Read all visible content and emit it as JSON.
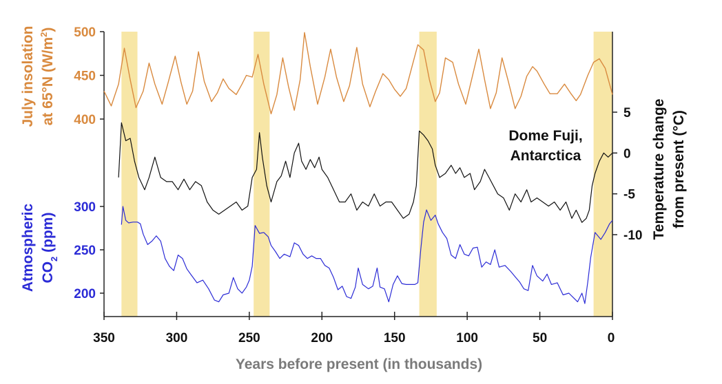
{
  "chart_data": {
    "type": "line",
    "x": {
      "label": "Years before present (in thousands)",
      "range": [
        350,
        0
      ],
      "ticks": [
        "350",
        "300",
        "250",
        "200",
        "150",
        "100",
        "50",
        "0"
      ]
    },
    "interglacial_bands_kyr": [
      [
        338,
        327
      ],
      [
        247,
        236
      ],
      [
        133,
        121
      ],
      [
        13,
        0
      ]
    ],
    "series": [
      {
        "name": "July insolation at 65°N",
        "color": "#d98a3f",
        "axis": "left-top",
        "ylim": [
          400,
          500
        ],
        "axis_ticks": [
          "400",
          "450",
          "500"
        ],
        "points": [
          [
            350,
            432
          ],
          [
            345,
            415
          ],
          [
            340,
            440
          ],
          [
            336,
            481
          ],
          [
            332,
            445
          ],
          [
            328,
            413
          ],
          [
            323,
            432
          ],
          [
            319,
            464
          ],
          [
            315,
            440
          ],
          [
            310,
            417
          ],
          [
            306,
            441
          ],
          [
            301,
            472
          ],
          [
            297,
            442
          ],
          [
            293,
            417
          ],
          [
            289,
            432
          ],
          [
            285,
            477
          ],
          [
            281,
            443
          ],
          [
            276,
            420
          ],
          [
            272,
            430
          ],
          [
            268,
            446
          ],
          [
            264,
            435
          ],
          [
            259,
            428
          ],
          [
            255,
            440
          ],
          [
            252,
            450
          ],
          [
            248,
            448
          ],
          [
            244,
            474
          ],
          [
            240,
            440
          ],
          [
            235,
            406
          ],
          [
            231,
            428
          ],
          [
            227,
            470
          ],
          [
            223,
            437
          ],
          [
            219,
            410
          ],
          [
            215,
            445
          ],
          [
            212,
            499
          ],
          [
            208,
            460
          ],
          [
            203,
            417
          ],
          [
            198,
            448
          ],
          [
            194,
            480
          ],
          [
            190,
            448
          ],
          [
            185,
            420
          ],
          [
            181,
            438
          ],
          [
            176,
            482
          ],
          [
            172,
            440
          ],
          [
            167,
            414
          ],
          [
            163,
            432
          ],
          [
            158,
            452
          ],
          [
            154,
            445
          ],
          [
            150,
            434
          ],
          [
            146,
            426
          ],
          [
            142,
            435
          ],
          [
            138,
            460
          ],
          [
            134,
            485
          ],
          [
            130,
            479
          ],
          [
            126,
            445
          ],
          [
            122,
            420
          ],
          [
            119,
            430
          ],
          [
            115,
            470
          ],
          [
            110,
            465
          ],
          [
            106,
            440
          ],
          [
            101,
            417
          ],
          [
            97,
            445
          ],
          [
            92,
            480
          ],
          [
            88,
            445
          ],
          [
            84,
            412
          ],
          [
            80,
            430
          ],
          [
            76,
            470
          ],
          [
            72,
            445
          ],
          [
            67,
            412
          ],
          [
            63,
            426
          ],
          [
            59,
            449
          ],
          [
            55,
            460
          ],
          [
            52,
            455
          ],
          [
            47,
            440
          ],
          [
            43,
            429
          ],
          [
            38,
            429
          ],
          [
            33,
            440
          ],
          [
            29,
            430
          ],
          [
            25,
            421
          ],
          [
            22,
            428
          ],
          [
            17,
            450
          ],
          [
            13,
            465
          ],
          [
            9,
            469
          ],
          [
            5,
            458
          ],
          [
            2,
            440
          ],
          [
            0,
            428
          ]
        ]
      },
      {
        "name": "Dome Fuji temperature change from present",
        "color": "#111111",
        "axis": "right",
        "ylim": [
          -10,
          5
        ],
        "axis_ticks": [
          "5",
          "0",
          "-5",
          "-10"
        ],
        "title": "Temperature change from present (°C)",
        "points": [
          [
            340,
            -3
          ],
          [
            338,
            3.7
          ],
          [
            335,
            1.5
          ],
          [
            332,
            1.8
          ],
          [
            329,
            -1
          ],
          [
            326,
            -3
          ],
          [
            322,
            -4.5
          ],
          [
            319,
            -3
          ],
          [
            315,
            -0.5
          ],
          [
            311,
            -3
          ],
          [
            307,
            -3.5
          ],
          [
            303,
            -3.5
          ],
          [
            299,
            -4.5
          ],
          [
            295,
            -3.2
          ],
          [
            291,
            -4.5
          ],
          [
            287,
            -3.5
          ],
          [
            283,
            -4
          ],
          [
            279,
            -6
          ],
          [
            275,
            -7
          ],
          [
            271,
            -7.5
          ],
          [
            267,
            -7
          ],
          [
            263,
            -6.5
          ],
          [
            259,
            -6
          ],
          [
            255,
            -7
          ],
          [
            251,
            -6.5
          ],
          [
            248,
            -3
          ],
          [
            245,
            -2
          ],
          [
            243,
            2.5
          ],
          [
            241,
            -0.5
          ],
          [
            238,
            -4
          ],
          [
            235,
            -6
          ],
          [
            231,
            -3.5
          ],
          [
            228,
            -2.8
          ],
          [
            225,
            -1
          ],
          [
            222,
            -3
          ],
          [
            219,
            0
          ],
          [
            216,
            1.2
          ],
          [
            214,
            -1
          ],
          [
            211,
            -2
          ],
          [
            208,
            -0.8
          ],
          [
            205,
            -1.8
          ],
          [
            202,
            -0.5
          ],
          [
            200,
            -2
          ],
          [
            196,
            -3
          ],
          [
            192,
            -4.5
          ],
          [
            188,
            -6
          ],
          [
            184,
            -6
          ],
          [
            180,
            -5
          ],
          [
            176,
            -7
          ],
          [
            172,
            -6
          ],
          [
            168,
            -6.5
          ],
          [
            164,
            -5
          ],
          [
            160,
            -6.5
          ],
          [
            156,
            -6
          ],
          [
            152,
            -6
          ],
          [
            148,
            -7
          ],
          [
            144,
            -8
          ],
          [
            140,
            -7.5
          ],
          [
            137,
            -6
          ],
          [
            135,
            -4
          ],
          [
            133,
            2.7
          ],
          [
            130,
            2.2
          ],
          [
            127,
            1.5
          ],
          [
            124,
            0.5
          ],
          [
            122,
            -1.5
          ],
          [
            119,
            -3
          ],
          [
            115,
            -2.5
          ],
          [
            111,
            -1.5
          ],
          [
            108,
            -2.5
          ],
          [
            105,
            -1.8
          ],
          [
            102,
            -3
          ],
          [
            98,
            -2.5
          ],
          [
            95,
            -4.5
          ],
          [
            91,
            -3.5
          ],
          [
            88,
            -2
          ],
          [
            85,
            -3
          ],
          [
            82,
            -4
          ],
          [
            79,
            -5
          ],
          [
            75,
            -5.5
          ],
          [
            71,
            -7
          ],
          [
            67,
            -5
          ],
          [
            63,
            -6
          ],
          [
            59,
            -4.5
          ],
          [
            56,
            -6
          ],
          [
            52,
            -5.5
          ],
          [
            48,
            -6
          ],
          [
            44,
            -6.5
          ],
          [
            40,
            -6
          ],
          [
            36,
            -7
          ],
          [
            32,
            -6
          ],
          [
            28,
            -8
          ],
          [
            25,
            -7
          ],
          [
            21,
            -8.5
          ],
          [
            18,
            -8
          ],
          [
            16,
            -7
          ],
          [
            14,
            -4
          ],
          [
            12,
            -2.5
          ],
          [
            9,
            -1
          ],
          [
            6,
            0
          ],
          [
            3,
            -0.5
          ],
          [
            0,
            0
          ]
        ]
      },
      {
        "name": "Atmospheric CO2",
        "color": "#2b2bd6",
        "axis": "left-bottom",
        "ylim": [
          200,
          300
        ],
        "axis_ticks": [
          "200",
          "250",
          "300"
        ],
        "points": [
          [
            338,
            279
          ],
          [
            337,
            300
          ],
          [
            335,
            284
          ],
          [
            333,
            281
          ],
          [
            330,
            282
          ],
          [
            327,
            282
          ],
          [
            325,
            280
          ],
          [
            323,
            268
          ],
          [
            320,
            256
          ],
          [
            317,
            260
          ],
          [
            314,
            266
          ],
          [
            311,
            260
          ],
          [
            308,
            240
          ],
          [
            305,
            231
          ],
          [
            302,
            226
          ],
          [
            299,
            244
          ],
          [
            296,
            240
          ],
          [
            293,
            228
          ],
          [
            290,
            221
          ],
          [
            286,
            212
          ],
          [
            282,
            215
          ],
          [
            278,
            205
          ],
          [
            274,
            192
          ],
          [
            271,
            190
          ],
          [
            268,
            198
          ],
          [
            264,
            200
          ],
          [
            261,
            218
          ],
          [
            258,
            205
          ],
          [
            255,
            200
          ],
          [
            252,
            207
          ],
          [
            250,
            215
          ],
          [
            248,
            231
          ],
          [
            246,
            278
          ],
          [
            243,
            269
          ],
          [
            240,
            270
          ],
          [
            237,
            265
          ],
          [
            235,
            255
          ],
          [
            232,
            248
          ],
          [
            229,
            240
          ],
          [
            226,
            245
          ],
          [
            222,
            242
          ],
          [
            219,
            258
          ],
          [
            216,
            255
          ],
          [
            213,
            245
          ],
          [
            210,
            240
          ],
          [
            207,
            243
          ],
          [
            204,
            240
          ],
          [
            201,
            240
          ],
          [
            198,
            232
          ],
          [
            195,
            229
          ],
          [
            192,
            218
          ],
          [
            189,
            204
          ],
          [
            186,
            208
          ],
          [
            183,
            196
          ],
          [
            180,
            194
          ],
          [
            177,
            207
          ],
          [
            175,
            229
          ],
          [
            172,
            210
          ],
          [
            168,
            205
          ],
          [
            165,
            208
          ],
          [
            162,
            229
          ],
          [
            160,
            207
          ],
          [
            157,
            205
          ],
          [
            154,
            190
          ],
          [
            151,
            210
          ],
          [
            148,
            220
          ],
          [
            145,
            211
          ],
          [
            142,
            210
          ],
          [
            139,
            210
          ],
          [
            136,
            210
          ],
          [
            134,
            212
          ],
          [
            132,
            250
          ],
          [
            130,
            282
          ],
          [
            128,
            296
          ],
          [
            125,
            284
          ],
          [
            122,
            290
          ],
          [
            120,
            280
          ],
          [
            117,
            270
          ],
          [
            114,
            263
          ],
          [
            111,
            244
          ],
          [
            108,
            240
          ],
          [
            105,
            256
          ],
          [
            102,
            245
          ],
          [
            99,
            243
          ],
          [
            96,
            252
          ],
          [
            93,
            253
          ],
          [
            90,
            230
          ],
          [
            87,
            236
          ],
          [
            84,
            233
          ],
          [
            81,
            250
          ],
          [
            78,
            230
          ],
          [
            74,
            232
          ],
          [
            70,
            225
          ],
          [
            67,
            219
          ],
          [
            64,
            213
          ],
          [
            61,
            205
          ],
          [
            58,
            203
          ],
          [
            55,
            232
          ],
          [
            52,
            220
          ],
          [
            48,
            214
          ],
          [
            45,
            222
          ],
          [
            42,
            210
          ],
          [
            38,
            212
          ],
          [
            34,
            198
          ],
          [
            30,
            200
          ],
          [
            27,
            195
          ],
          [
            24,
            190
          ],
          [
            21,
            200
          ],
          [
            19,
            188
          ],
          [
            17,
            213
          ],
          [
            15,
            241
          ],
          [
            12,
            270
          ],
          [
            8,
            262
          ],
          [
            5,
            270
          ],
          [
            2,
            280
          ],
          [
            0,
            284
          ]
        ]
      }
    ],
    "y_axis_titles": {
      "insolation_line1": "July insolation",
      "insolation_line2_prefix": "at 65°N (W/m",
      "insolation_sup": "2",
      "insolation_suffix": ")",
      "co2_line1": "Atmospheric",
      "co2_line2_prefix": "CO",
      "co2_sub": "2",
      "co2_line2_suffix": " (ppm)",
      "temperature_line1": "Temperature change",
      "temperature_line2": "from present (°C)"
    },
    "annotation": {
      "line1": "Dome Fuji,",
      "line2": "Antarctica"
    }
  }
}
